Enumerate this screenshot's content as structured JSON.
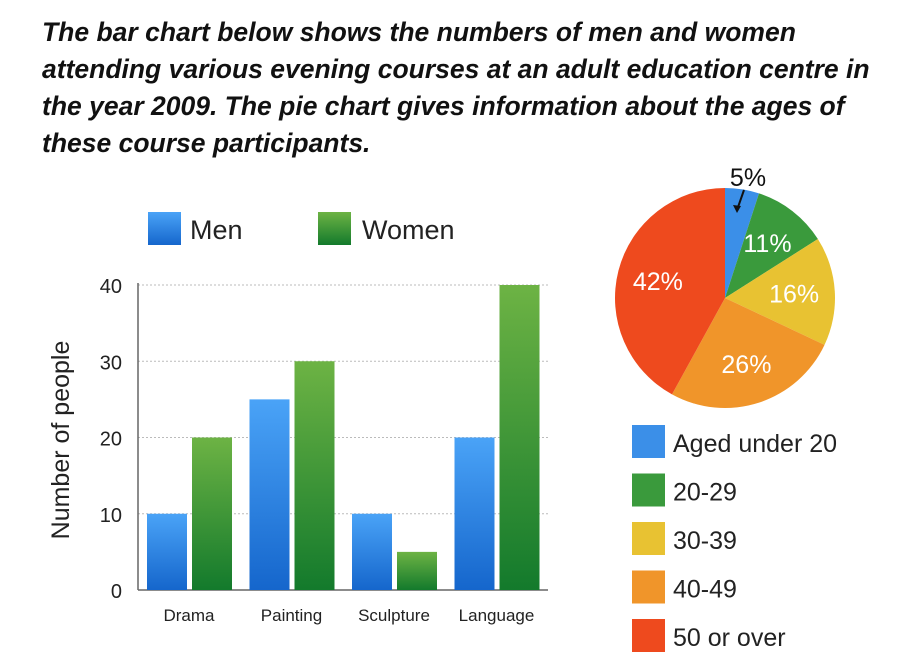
{
  "title": "The bar chart below shows the numbers of men and women attending various evening courses at an adult education centre in the year 2009. The pie chart gives information about the ages of these course participants.",
  "chart_data": [
    {
      "type": "bar",
      "categories": [
        "Drama",
        "Painting",
        "Sculpture",
        "Language"
      ],
      "series": [
        {
          "name": "Men",
          "values": [
            10,
            25,
            10,
            20
          ],
          "color": "#2f86e6"
        },
        {
          "name": "Women",
          "values": [
            20,
            30,
            5,
            40
          ],
          "color": "#2e9a3a"
        }
      ],
      "xlabel": "",
      "ylabel": "Number of people",
      "ylim": [
        0,
        40
      ],
      "yticks": [
        "0",
        "10",
        "20",
        "30",
        "40"
      ],
      "grid": true,
      "legend": "top"
    },
    {
      "type": "pie",
      "slices": [
        {
          "label": "Aged under 20",
          "value": 5,
          "text": "5%",
          "color": "#3b8fe8"
        },
        {
          "label": "20-29",
          "value": 11,
          "text": "11%",
          "color": "#3a9a3c"
        },
        {
          "label": "30-39",
          "value": 16,
          "text": "16%",
          "color": "#e8c232"
        },
        {
          "label": "40-49",
          "value": 26,
          "text": "26%",
          "color": "#f0952a"
        },
        {
          "label": "50 or over",
          "value": 42,
          "text": "42%",
          "color": "#ee4a1e"
        }
      ],
      "legend": "bottom"
    }
  ]
}
